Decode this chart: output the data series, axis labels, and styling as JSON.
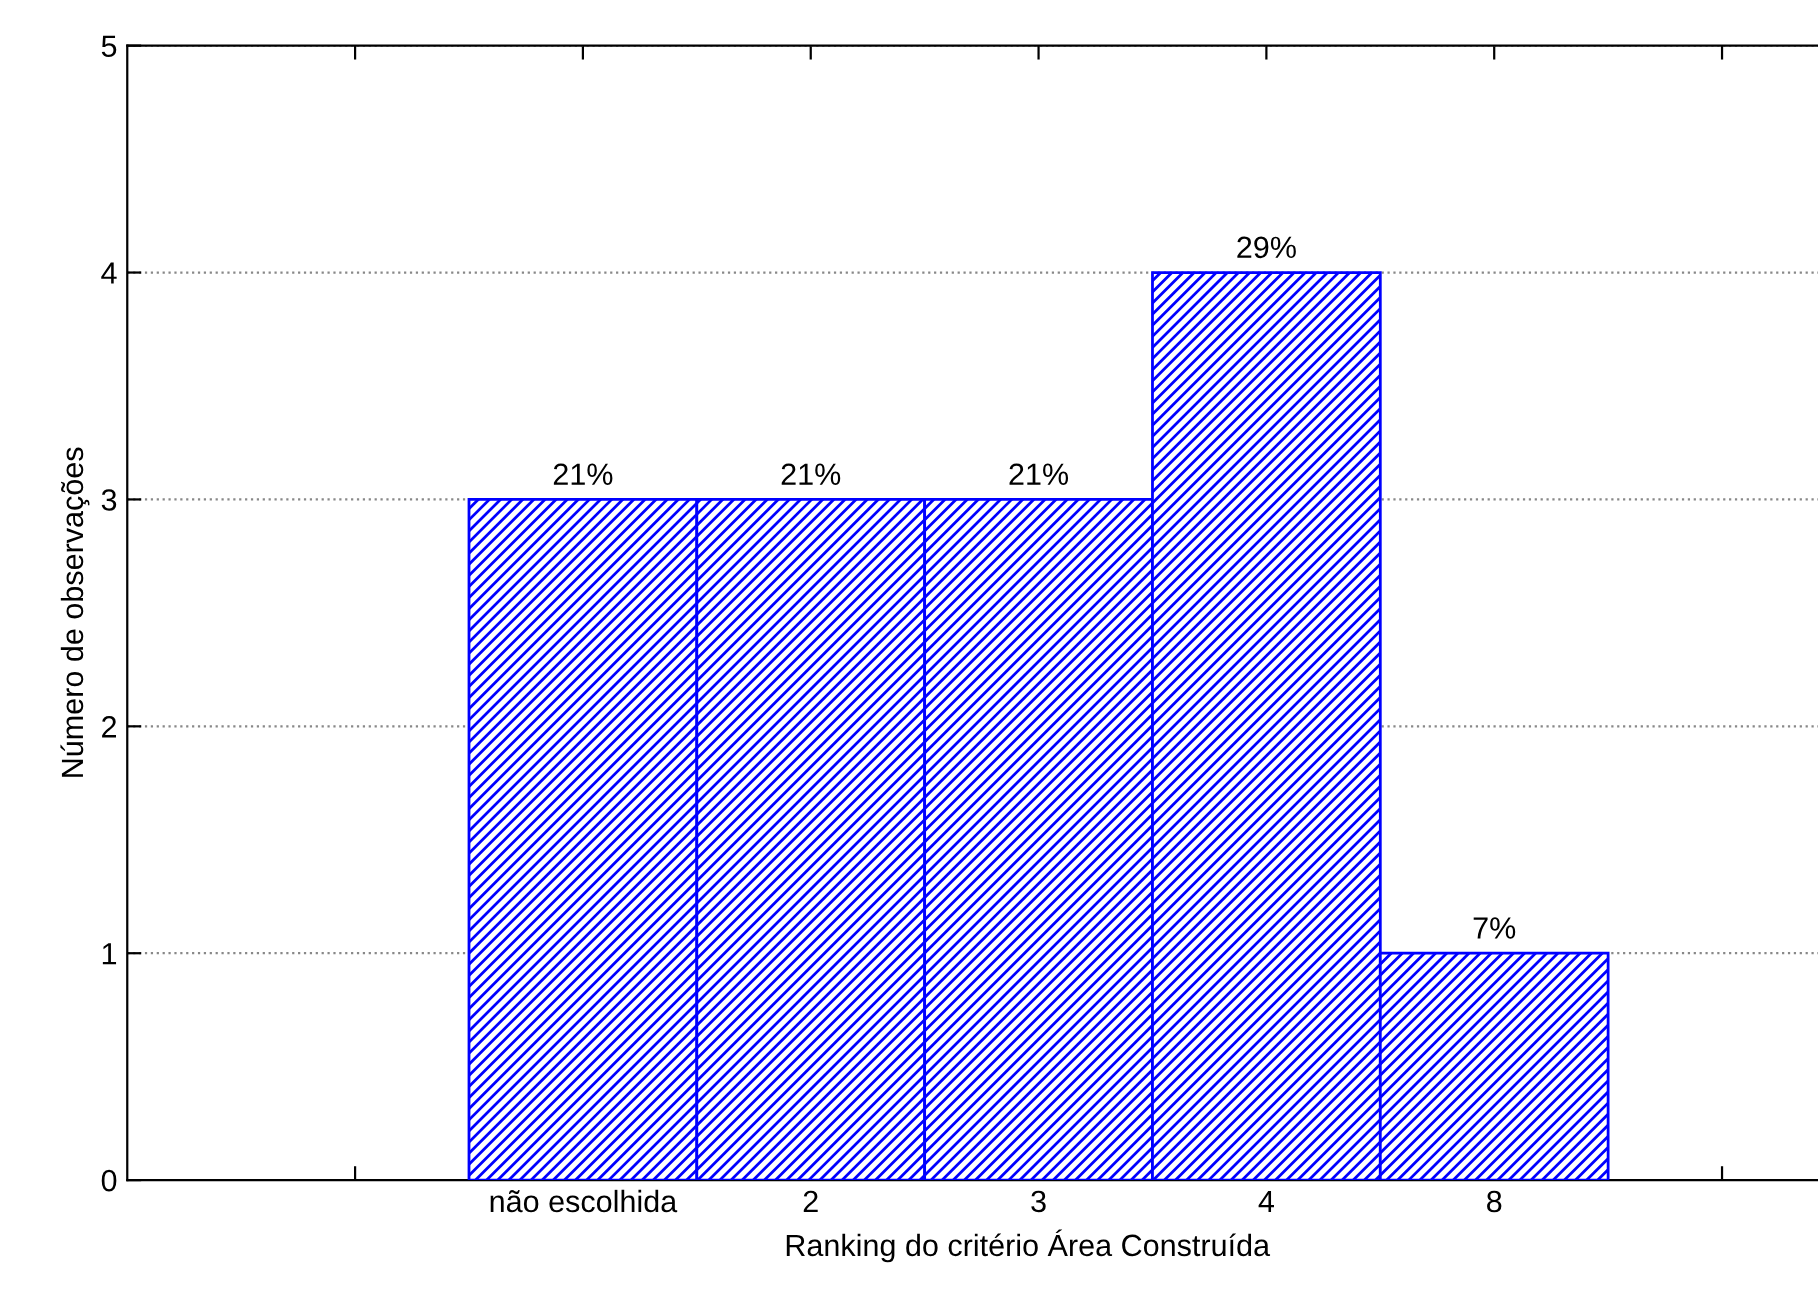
{
  "chart_data": {
    "type": "bar",
    "xlabel": "Ranking do critério Área Construída",
    "ylabel": "Número de observações",
    "categories": [
      null,
      "não escolhida",
      "2",
      "3",
      "4",
      "8",
      null
    ],
    "values": [
      null,
      3,
      3,
      3,
      4,
      1,
      null
    ],
    "annotations": [
      {
        "text": "21%",
        "x": "não escolhida",
        "y": 3
      },
      {
        "text": "21%",
        "x": "2",
        "y": 3
      },
      {
        "text": "21%",
        "x": "3",
        "y": 3
      },
      {
        "text": "29%",
        "x": "4",
        "y": 4
      },
      {
        "text": "7%",
        "x": "8",
        "y": 1
      }
    ],
    "color": "#0000ff",
    "ylim": [
      0,
      5
    ],
    "yticks": [
      0,
      1,
      2,
      3,
      4,
      5
    ],
    "grid": "y"
  }
}
